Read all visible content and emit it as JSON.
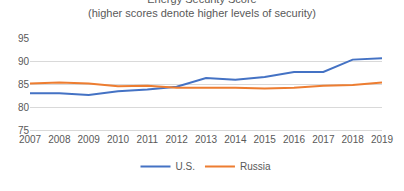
{
  "chart_data": {
    "type": "line",
    "title": "Energy Security Score",
    "subtitle": "(higher scores denote higher levels of security)",
    "categories": [
      "2007",
      "2008",
      "2009",
      "2010",
      "2011",
      "2012",
      "2013",
      "2014",
      "2015",
      "2016",
      "2017",
      "2018",
      "2019"
    ],
    "series": [
      {
        "name": "U.S.",
        "color": "#4472c4",
        "values": [
          83.0,
          83.0,
          82.6,
          83.4,
          83.8,
          84.4,
          86.3,
          85.9,
          86.5,
          87.6,
          87.6,
          90.3,
          90.6
        ]
      },
      {
        "name": "Russia",
        "color": "#ed7d31",
        "values": [
          85.1,
          85.3,
          85.1,
          84.5,
          84.6,
          84.2,
          84.2,
          84.2,
          84.0,
          84.2,
          84.6,
          84.8,
          85.3
        ]
      }
    ],
    "ylim": [
      75,
      95
    ],
    "yticks": [
      75,
      80,
      85,
      90,
      95
    ],
    "grid": true,
    "legend": "bottom"
  }
}
